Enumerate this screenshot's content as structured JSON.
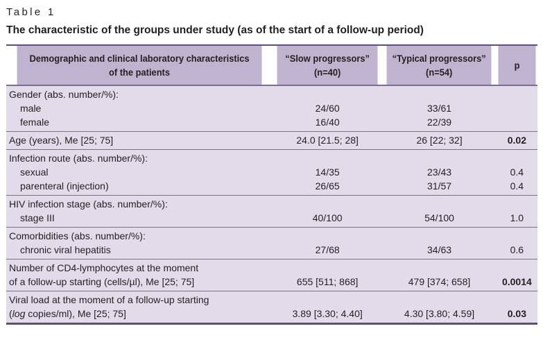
{
  "table_label": "Table 1",
  "title": "The characteristic of the groups under study (as of the start of a follow-up period)",
  "header": {
    "col1_line1": "Demographic and clinical laboratory characteristics",
    "col1_line2": "of the patients",
    "col2_line1": "“Slow progressors”",
    "col2_line2": "(n=40)",
    "col3_line1": "“Typical progressors”",
    "col3_line2": "(n=54)",
    "col4": "p"
  },
  "rows": {
    "gender": {
      "label": "Gender (abs. number/%):",
      "male": {
        "label": "male",
        "slow": "24/60",
        "typical": "33/61",
        "p": ""
      },
      "female": {
        "label": "female",
        "slow": "16/40",
        "typical": "22/39",
        "p": ""
      }
    },
    "age": {
      "label": "Age (years), Me [25; 75]",
      "slow": "24.0 [21.5; 28]",
      "typical": "26 [22; 32]",
      "p": "0.02"
    },
    "infection": {
      "label": "Infection route (abs. number/%):",
      "sexual": {
        "label": "sexual",
        "slow": "14/35",
        "typical": "23/43",
        "p": "0.4"
      },
      "parenteral": {
        "label": "parenteral (injection)",
        "slow": "26/65",
        "typical": "31/57",
        "p": "0.4"
      }
    },
    "hiv": {
      "label": "HIV infection stage (abs. number/%):",
      "stage3": {
        "label": "stage III",
        "slow": "40/100",
        "typical": "54/100",
        "p": "1.0"
      }
    },
    "comorb": {
      "label": "Comorbidities (abs. number/%):",
      "hepatitis": {
        "label": "chronic viral hepatitis",
        "slow": "27/68",
        "typical": "34/63",
        "p": "0.6"
      }
    },
    "cd4": {
      "label_line1": "Number of CD4-lymphocytes at the moment",
      "label_line2": "of a follow-up starting (cells/µl), Me [25; 75]",
      "slow": "655 [511; 868]",
      "typical": "479 [374; 658]",
      "p": "0.0014"
    },
    "viral": {
      "label_line1": "Viral load at the moment of a follow-up starting",
      "label_line2_italic": "log",
      "label_line2_rest": " copies/ml), Me [25; 75]",
      "label_line2_open": "(",
      "slow": "3.89 [3.30; 4.40]",
      "typical": "4.30 [3.80; 4.59]",
      "p": "0.03"
    }
  }
}
